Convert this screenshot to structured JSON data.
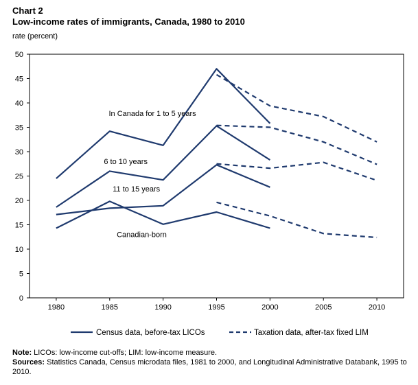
{
  "header": {
    "chart_label": "Chart 2",
    "title": "Low-income rates of immigrants, Canada, 1980 to 2010",
    "y_unit": "rate (percent)"
  },
  "legend": {
    "census": "Census data, before-tax LICOs",
    "taxation": "Taxation data, after-tax fixed LIM"
  },
  "notes": {
    "note_label": "Note:",
    "note_text": "LICOs: low-income cut-offs; LIM: low-income measure.",
    "sources_label": "Sources:",
    "sources_text": "Statistics Canada, Census microdata files, 1981 to 2000, and Longitudinal Administrative Databank, 1995 to 2010."
  },
  "colors": {
    "series": "#1f3a6e",
    "axis": "#000000"
  },
  "chart_data": {
    "type": "line",
    "title": "Low-income rates of immigrants, Canada, 1980 to 2010",
    "xlabel": "",
    "ylabel": "rate (percent)",
    "x_ticks": [
      1980,
      1985,
      1990,
      1995,
      2000,
      2005,
      2010
    ],
    "y_ticks": [
      0,
      5,
      10,
      15,
      20,
      25,
      30,
      35,
      40,
      45,
      50
    ],
    "xlim": [
      1977.5,
      2012.5
    ],
    "ylim": [
      0,
      50
    ],
    "grid": false,
    "legend_position": "bottom",
    "series": [
      {
        "name": "In Canada for 1 to 5 years",
        "source": "census",
        "label_at": [
          1989,
          37.3
        ],
        "x": [
          1980,
          1985,
          1990,
          1995,
          2000
        ],
        "values": [
          24.5,
          34.2,
          31.3,
          47.0,
          35.8
        ]
      },
      {
        "name": "In Canada for 1 to 5 years",
        "source": "taxation",
        "x": [
          1995,
          2000,
          2005,
          2010
        ],
        "values": [
          45.8,
          39.4,
          37.2,
          32.0
        ]
      },
      {
        "name": "6 to 10 years",
        "source": "census",
        "label_at": [
          1986.5,
          27.5
        ],
        "x": [
          1980,
          1985,
          1990,
          1995,
          2000
        ],
        "values": [
          18.6,
          26.0,
          24.2,
          35.3,
          28.3
        ]
      },
      {
        "name": "6 to 10 years",
        "source": "taxation",
        "x": [
          1995,
          2000,
          2005,
          2010
        ],
        "values": [
          35.4,
          35.0,
          32.0,
          27.4
        ]
      },
      {
        "name": "11 to 15 years",
        "source": "census",
        "label_at": [
          1987.5,
          21.8
        ],
        "x": [
          1980,
          1985,
          1990,
          1995,
          2000
        ],
        "values": [
          17.1,
          18.4,
          18.9,
          27.3,
          22.7
        ]
      },
      {
        "name": "11 to 15 years",
        "source": "taxation",
        "x": [
          1995,
          2000,
          2005,
          2010
        ],
        "values": [
          27.5,
          26.6,
          27.8,
          24.1
        ]
      },
      {
        "name": "Canadian-born",
        "source": "census",
        "label_at": [
          1988,
          12.5
        ],
        "x": [
          1980,
          1985,
          1990,
          1995,
          2000
        ],
        "values": [
          14.3,
          19.8,
          15.1,
          17.6,
          14.3
        ]
      },
      {
        "name": "Canadian-born",
        "source": "taxation",
        "x": [
          1995,
          2000,
          2005,
          2010
        ],
        "values": [
          19.6,
          16.8,
          13.2,
          12.4
        ]
      }
    ]
  }
}
